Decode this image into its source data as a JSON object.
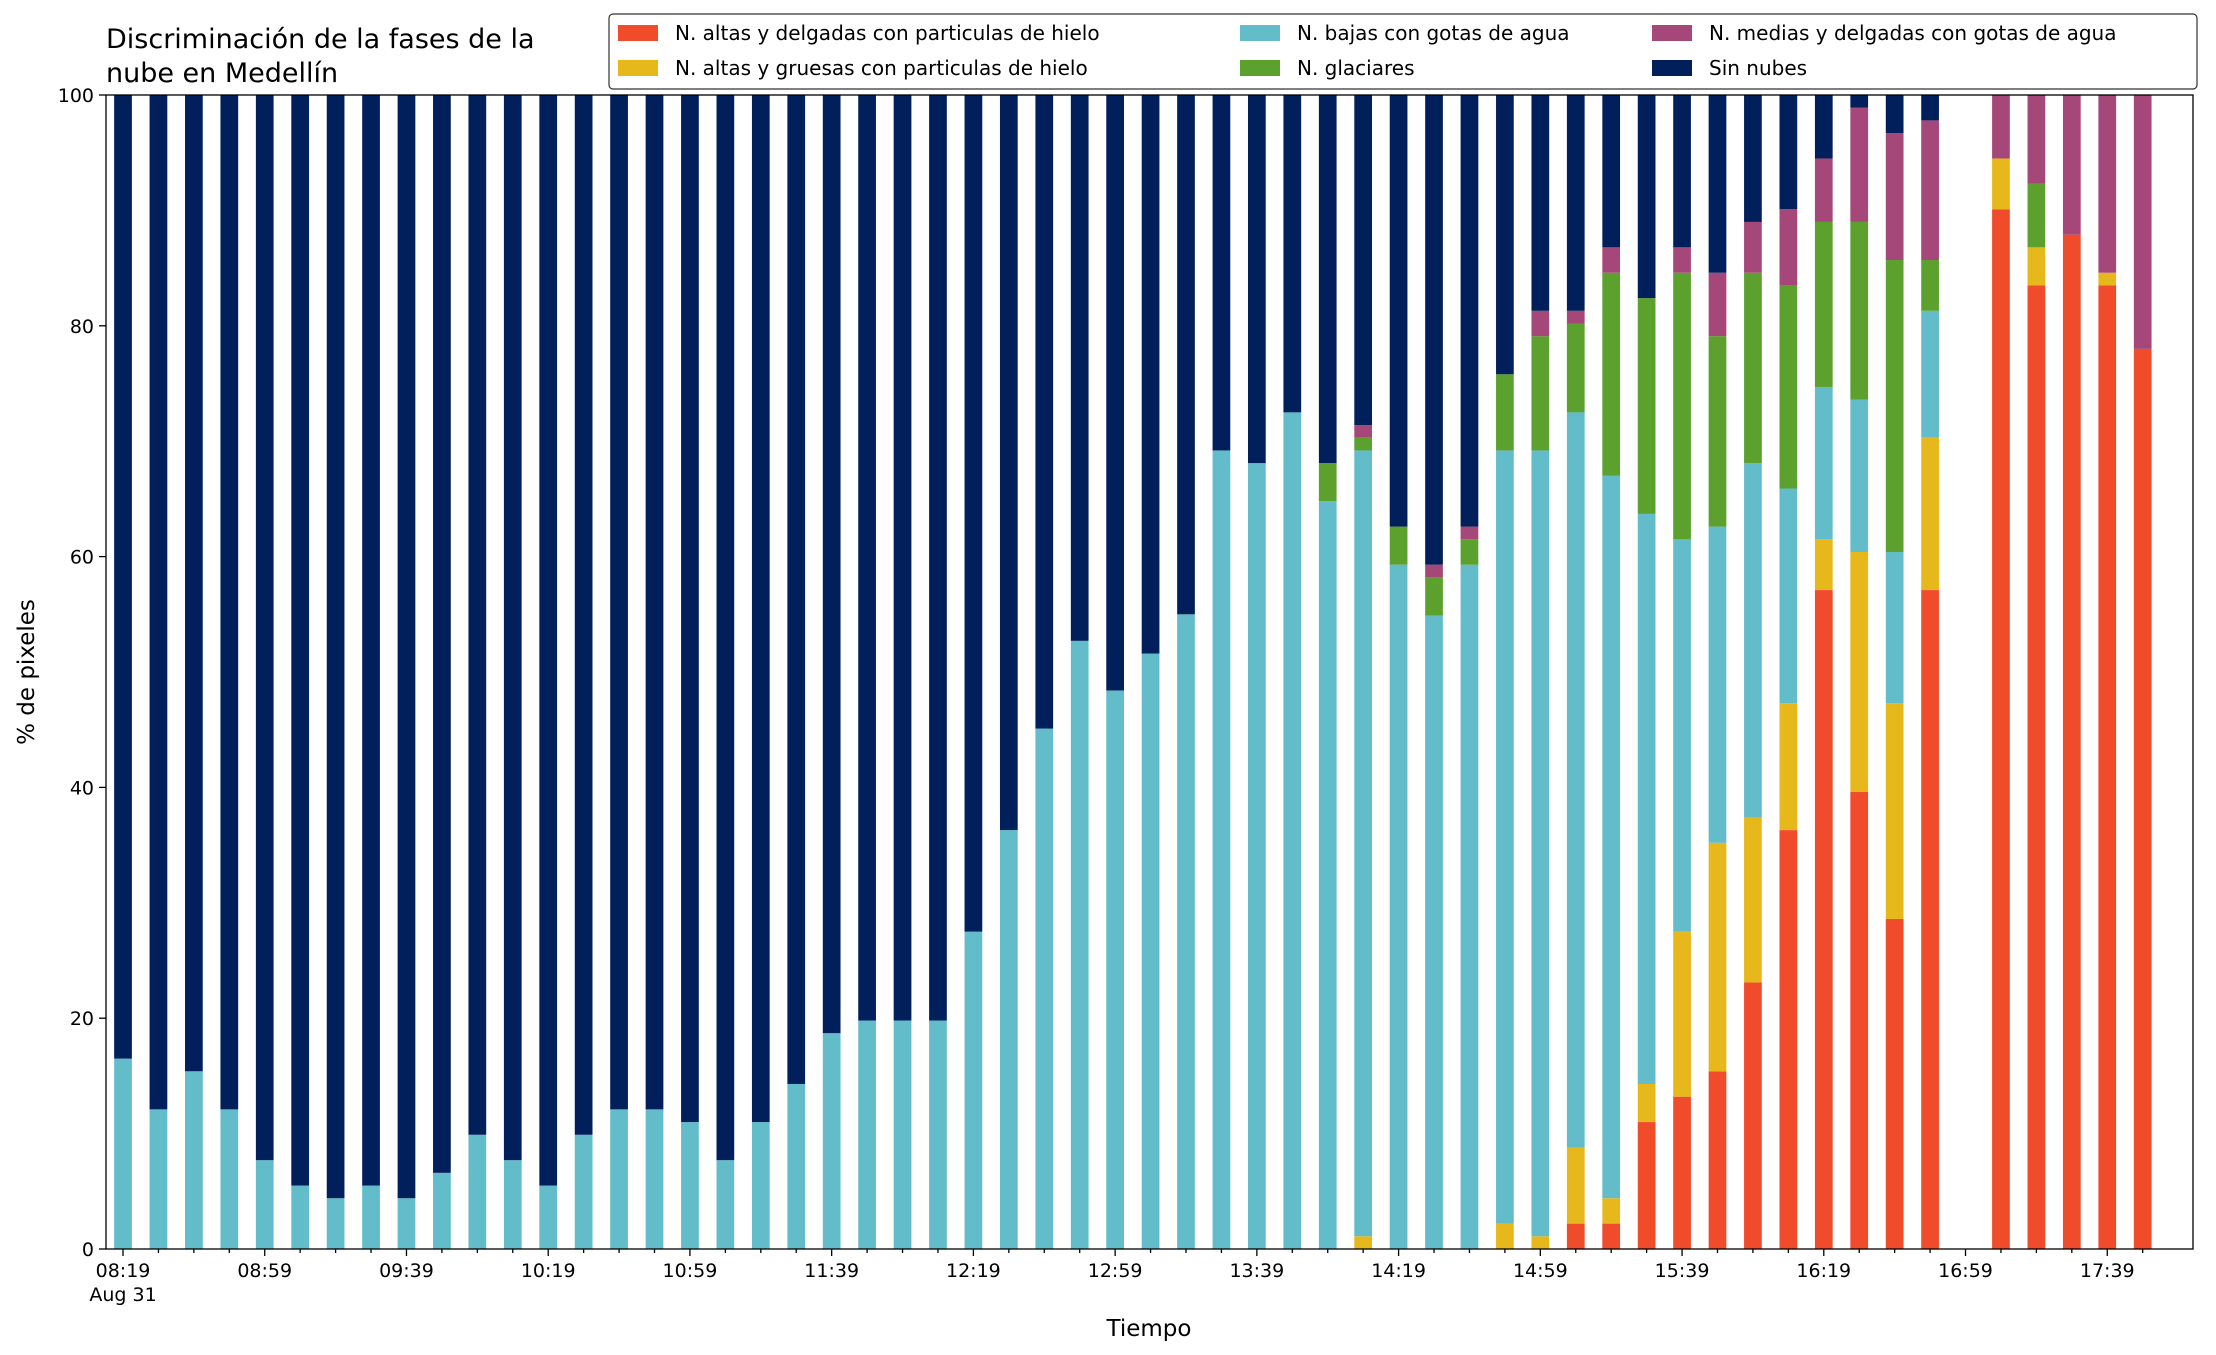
{
  "chart_data": {
    "type": "stacked_bar",
    "title": [
      "Discriminación de la fases de la",
      "nube en Medellín"
    ],
    "xlabel": "Tiempo",
    "ylabel": "% de pixeles",
    "x_date_label": "Aug 31",
    "categories": [
      "08:19",
      null,
      null,
      null,
      "08:59",
      null,
      null,
      null,
      "09:39",
      null,
      null,
      null,
      "10:19",
      null,
      null,
      null,
      "10:59",
      null,
      null,
      null,
      "11:39",
      null,
      null,
      null,
      "12:19",
      null,
      null,
      null,
      "12:59",
      null,
      null,
      null,
      "13:39",
      null,
      null,
      null,
      "14:19",
      null,
      null,
      null,
      "14:59",
      null,
      null,
      null,
      "15:39",
      null,
      null,
      null,
      "16:19",
      null,
      null,
      null,
      "16:59",
      null,
      null,
      null,
      "17:39",
      null
    ],
    "ylim": [
      0,
      100
    ],
    "yticks": [
      0,
      20,
      40,
      60,
      80,
      100
    ],
    "grid": false,
    "legend": "top",
    "series": [
      {
        "name": "N. altas y delgadas con particulas de hielo",
        "color": "#f04b2b",
        "values": [
          0,
          0,
          0,
          0,
          0,
          0,
          0,
          0,
          0,
          0,
          0,
          0,
          0,
          0,
          0,
          0,
          0,
          0,
          0,
          0,
          0,
          0,
          0,
          0,
          0,
          0,
          0,
          0,
          0,
          0,
          0,
          0,
          0,
          0,
          0,
          0,
          0,
          0,
          0,
          0,
          0,
          2.2,
          2.2,
          11.0,
          13.2,
          15.4,
          23.1,
          36.3,
          57.1,
          39.6,
          28.6,
          57.1,
          null,
          90.1,
          83.5,
          87.9,
          83.5,
          78.0
        ]
      },
      {
        "name": "N. altas y gruesas con particulas de hielo",
        "color": "#e6b81b",
        "values": [
          0,
          0,
          0,
          0,
          0,
          0,
          0,
          0,
          0,
          0,
          0,
          0,
          0,
          0,
          0,
          0,
          0,
          0,
          0,
          0,
          0,
          0,
          0,
          0,
          0,
          0,
          0,
          0,
          0,
          0,
          0,
          0,
          0,
          0,
          0,
          1.1,
          0,
          0,
          0,
          2.2,
          1.1,
          6.6,
          2.2,
          3.3,
          14.3,
          19.8,
          14.3,
          11.0,
          4.4,
          20.8,
          18.7,
          13.2,
          null,
          4.4,
          3.3,
          0,
          1.1,
          0
        ]
      },
      {
        "name": "N. bajas con gotas de agua",
        "color": "#63bcc9",
        "values": [
          16.5,
          12.1,
          15.4,
          12.1,
          7.7,
          5.5,
          4.4,
          5.5,
          4.4,
          6.6,
          9.9,
          7.7,
          5.5,
          9.9,
          12.1,
          12.1,
          11.0,
          7.7,
          11.0,
          14.3,
          18.7,
          19.8,
          19.8,
          19.8,
          27.5,
          36.3,
          45.1,
          52.7,
          48.4,
          51.6,
          55.0,
          69.2,
          68.1,
          72.5,
          64.8,
          68.1,
          59.3,
          54.9,
          59.3,
          67.0,
          68.1,
          63.7,
          62.6,
          49.4,
          34.0,
          27.4,
          30.7,
          18.6,
          13.2,
          13.2,
          13.1,
          11.0,
          null,
          0,
          0,
          0,
          0,
          0
        ]
      },
      {
        "name": "N. glaciares",
        "color": "#5ca02d",
        "values": [
          0,
          0,
          0,
          0,
          0,
          0,
          0,
          0,
          0,
          0,
          0,
          0,
          0,
          0,
          0,
          0,
          0,
          0,
          0,
          0,
          0,
          0,
          0,
          0,
          0,
          0,
          0,
          0,
          0,
          0,
          0,
          0,
          0,
          0,
          3.3,
          1.1,
          3.3,
          3.3,
          2.2,
          6.6,
          9.9,
          7.7,
          17.6,
          18.7,
          23.1,
          16.5,
          16.5,
          17.6,
          14.3,
          15.4,
          25.3,
          4.4,
          null,
          0,
          5.5,
          0,
          0,
          0
        ]
      },
      {
        "name": "N. medias y delgadas con gotas de agua",
        "color": "#a54778",
        "values": [
          0,
          0,
          0,
          0,
          0,
          0,
          0,
          0,
          0,
          0,
          0,
          0,
          0,
          0,
          0,
          0,
          0,
          0,
          0,
          0,
          0,
          0,
          0,
          0,
          0,
          0,
          0,
          0,
          0,
          0,
          0,
          0,
          0,
          0,
          0,
          1.1,
          0,
          1.1,
          1.1,
          0,
          2.2,
          1.1,
          2.2,
          0,
          2.2,
          5.5,
          4.4,
          6.6,
          5.5,
          9.9,
          11.0,
          12.1,
          null,
          5.5,
          7.7,
          12.1,
          15.4,
          22.0
        ]
      },
      {
        "name": "Sin nubes",
        "color": "#011f5b",
        "values": [
          83.5,
          87.9,
          84.6,
          87.9,
          92.3,
          94.5,
          95.6,
          94.5,
          95.6,
          93.4,
          90.1,
          92.3,
          94.5,
          90.1,
          87.9,
          87.9,
          89.0,
          92.3,
          89.0,
          85.7,
          81.3,
          80.2,
          80.2,
          80.2,
          72.5,
          63.7,
          54.9,
          47.3,
          51.6,
          48.4,
          45.0,
          30.8,
          31.9,
          27.5,
          31.9,
          28.6,
          37.4,
          40.7,
          37.4,
          24.2,
          18.7,
          18.7,
          13.2,
          17.6,
          13.2,
          15.4,
          11.0,
          9.9,
          5.5,
          1.1,
          3.3,
          2.2,
          null,
          0,
          0,
          0,
          0,
          0
        ]
      }
    ]
  }
}
